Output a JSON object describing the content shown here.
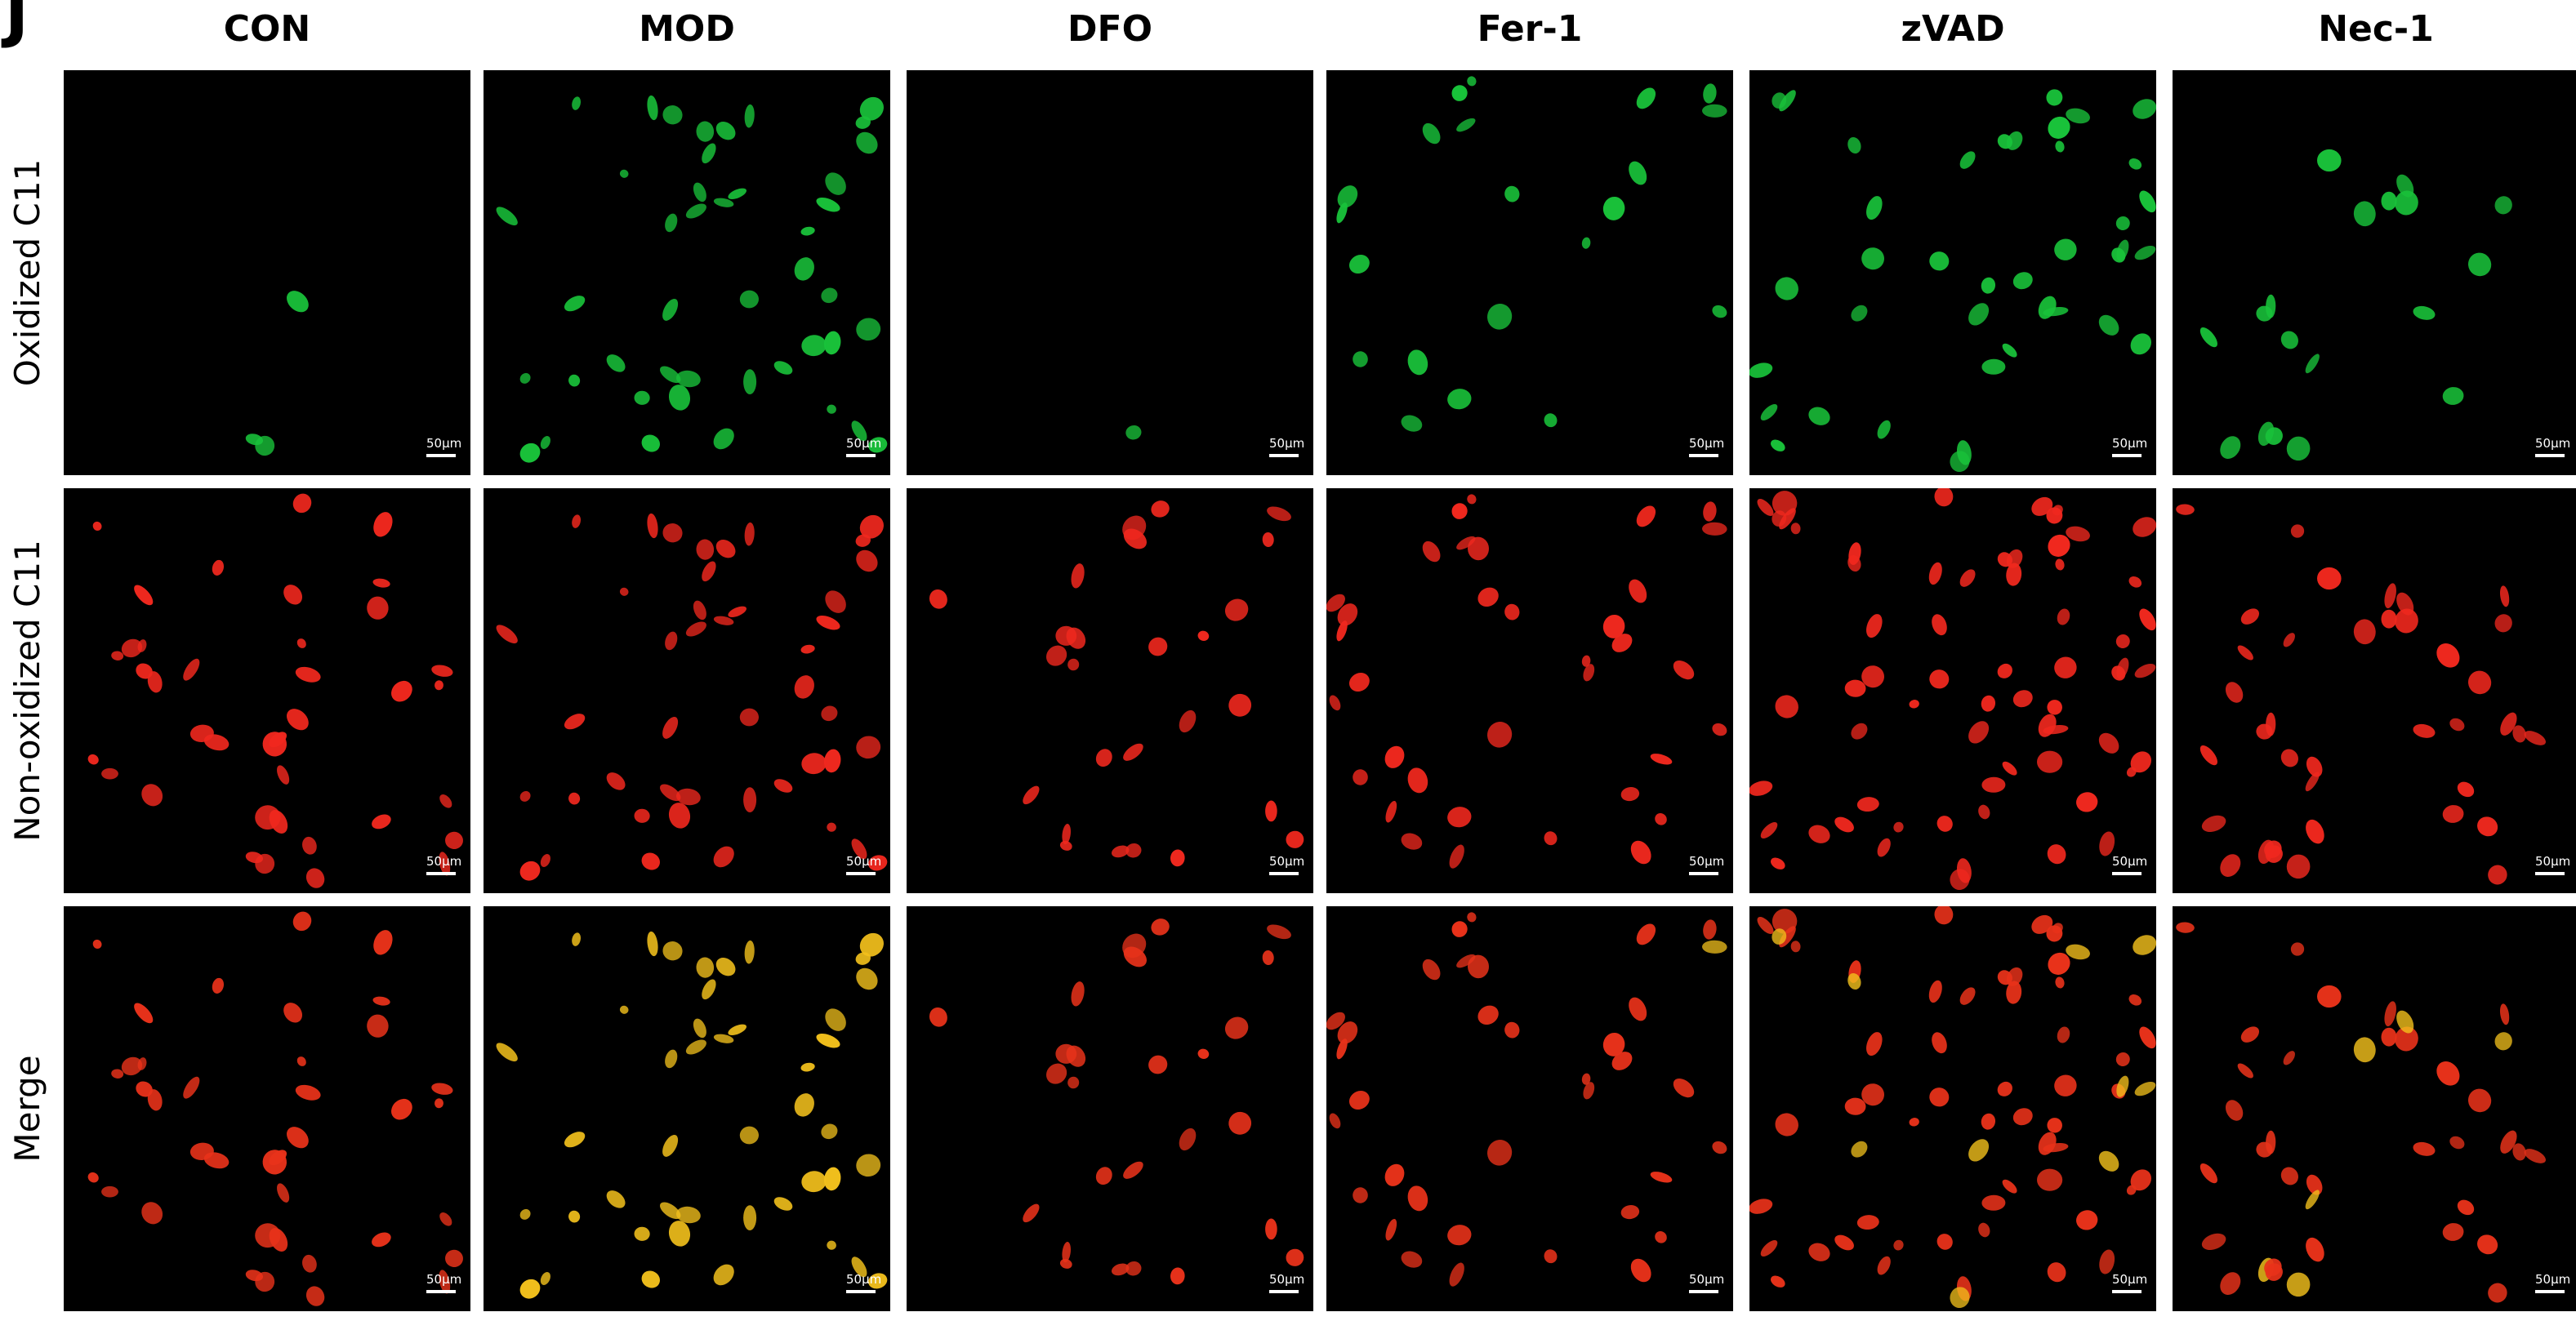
{
  "figure": {
    "panel_letter": "J",
    "columns": [
      "CON",
      "MOD",
      "DFO",
      "Fer-1",
      "zVAD",
      "Nec-1"
    ],
    "rows": [
      "Oxidized C11",
      "Non-oxidized C11",
      "Merge"
    ],
    "scale_bar_label": "50μm"
  },
  "colors": {
    "background": "#000000",
    "oxidized": "#19c23a",
    "non_oxidized": "#f0281e",
    "merge_red": "#e8321a",
    "merge_yellow": "#f2c01c"
  },
  "image_content": {
    "oxidized_green_intensity": {
      "CON": "low",
      "MOD": "high",
      "DFO": "low",
      "Fer-1": "medium",
      "zVAD": "medium",
      "Nec-1": "medium"
    },
    "merge_tint": {
      "CON": "red",
      "MOD": "yellow",
      "DFO": "red",
      "Fer-1": "red",
      "zVAD": "orange",
      "Nec-1": "orange"
    }
  }
}
